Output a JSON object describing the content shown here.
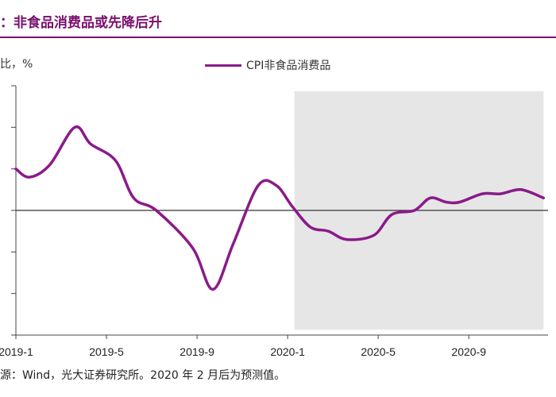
{
  "title": "：非食品消费品或先降后升",
  "source": "源：Wind，光大证券研究所。2020 年 2 月后为预测值。",
  "colors": {
    "series": "#8b1a8a",
    "forecast_band": "#e6e6e6",
    "title": "#7a0f6e"
  },
  "chart_data": {
    "type": "line",
    "ylabel": "比，%",
    "xlabel": "",
    "x_tick_labels": [
      "2019-1",
      "2019-5",
      "2019-9",
      "2020-1",
      "2020-5",
      "2020-9"
    ],
    "x_tick_positions": [
      0,
      4,
      8,
      12,
      16,
      20
    ],
    "xlim": [
      0,
      23.5
    ],
    "ylim": [
      -3,
      3
    ],
    "grid": false,
    "legend": "top-center",
    "shaded_region": [
      12.3,
      23.3
    ],
    "series": [
      {
        "name": "CPI非食品消费品",
        "x": [
          0,
          0.6,
          1.5,
          2.6,
          3.3,
          4.4,
          5.2,
          6.2,
          7.8,
          8.7,
          9.6,
          10.7,
          11.5,
          12.2,
          13.0,
          13.8,
          14.6,
          15.8,
          16.6,
          17.6,
          18.3,
          19.0,
          19.6,
          20.6,
          21.4,
          22.3,
          23.3
        ],
        "values": [
          1.0,
          0.8,
          1.1,
          2.0,
          1.6,
          1.2,
          0.3,
          0.0,
          -0.9,
          -1.9,
          -0.8,
          0.6,
          0.6,
          0.1,
          -0.4,
          -0.5,
          -0.7,
          -0.6,
          -0.1,
          0.0,
          0.3,
          0.2,
          0.2,
          0.4,
          0.4,
          0.5,
          0.3
        ]
      }
    ]
  }
}
